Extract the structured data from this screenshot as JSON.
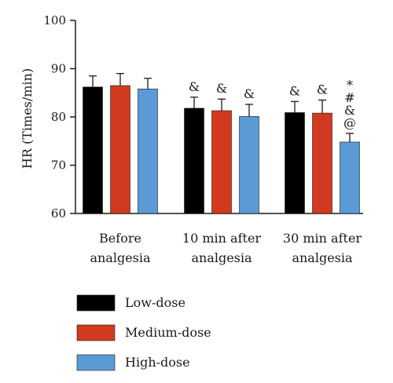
{
  "chart_data": {
    "type": "bar",
    "ylabel": "HR (Times/min)",
    "ylim": [
      60,
      100
    ],
    "yticks": [
      "60",
      "70",
      "80",
      "90",
      "100"
    ],
    "categories": [
      [
        "Before",
        "analgesia"
      ],
      [
        "10 min after",
        "analgesia"
      ],
      [
        "30 min after",
        "analgesia"
      ]
    ],
    "series": [
      {
        "name": "Low-dose",
        "color": "#000000",
        "values": [
          86.2,
          81.8,
          80.9
        ],
        "errors": [
          2.3,
          2.3,
          2.3
        ]
      },
      {
        "name": "Medium-dose",
        "color": "#d23a1f",
        "values": [
          86.5,
          81.3,
          80.8
        ],
        "errors": [
          2.5,
          2.4,
          2.7
        ]
      },
      {
        "name": "High-dose",
        "color": "#5b9bd5",
        "values": [
          85.8,
          80.1,
          74.8
        ],
        "errors": [
          2.2,
          2.5,
          1.8
        ]
      }
    ],
    "annotations": [
      {
        "category": 1,
        "series": 0,
        "marks": [
          "&"
        ]
      },
      {
        "category": 1,
        "series": 1,
        "marks": [
          "&"
        ]
      },
      {
        "category": 1,
        "series": 2,
        "marks": [
          "&"
        ]
      },
      {
        "category": 2,
        "series": 0,
        "marks": [
          "&"
        ]
      },
      {
        "category": 2,
        "series": 1,
        "marks": [
          "&"
        ]
      },
      {
        "category": 2,
        "series": 2,
        "marks": [
          "*",
          "#",
          "&",
          "@"
        ]
      }
    ],
    "grid": false,
    "legend": "bottom"
  }
}
